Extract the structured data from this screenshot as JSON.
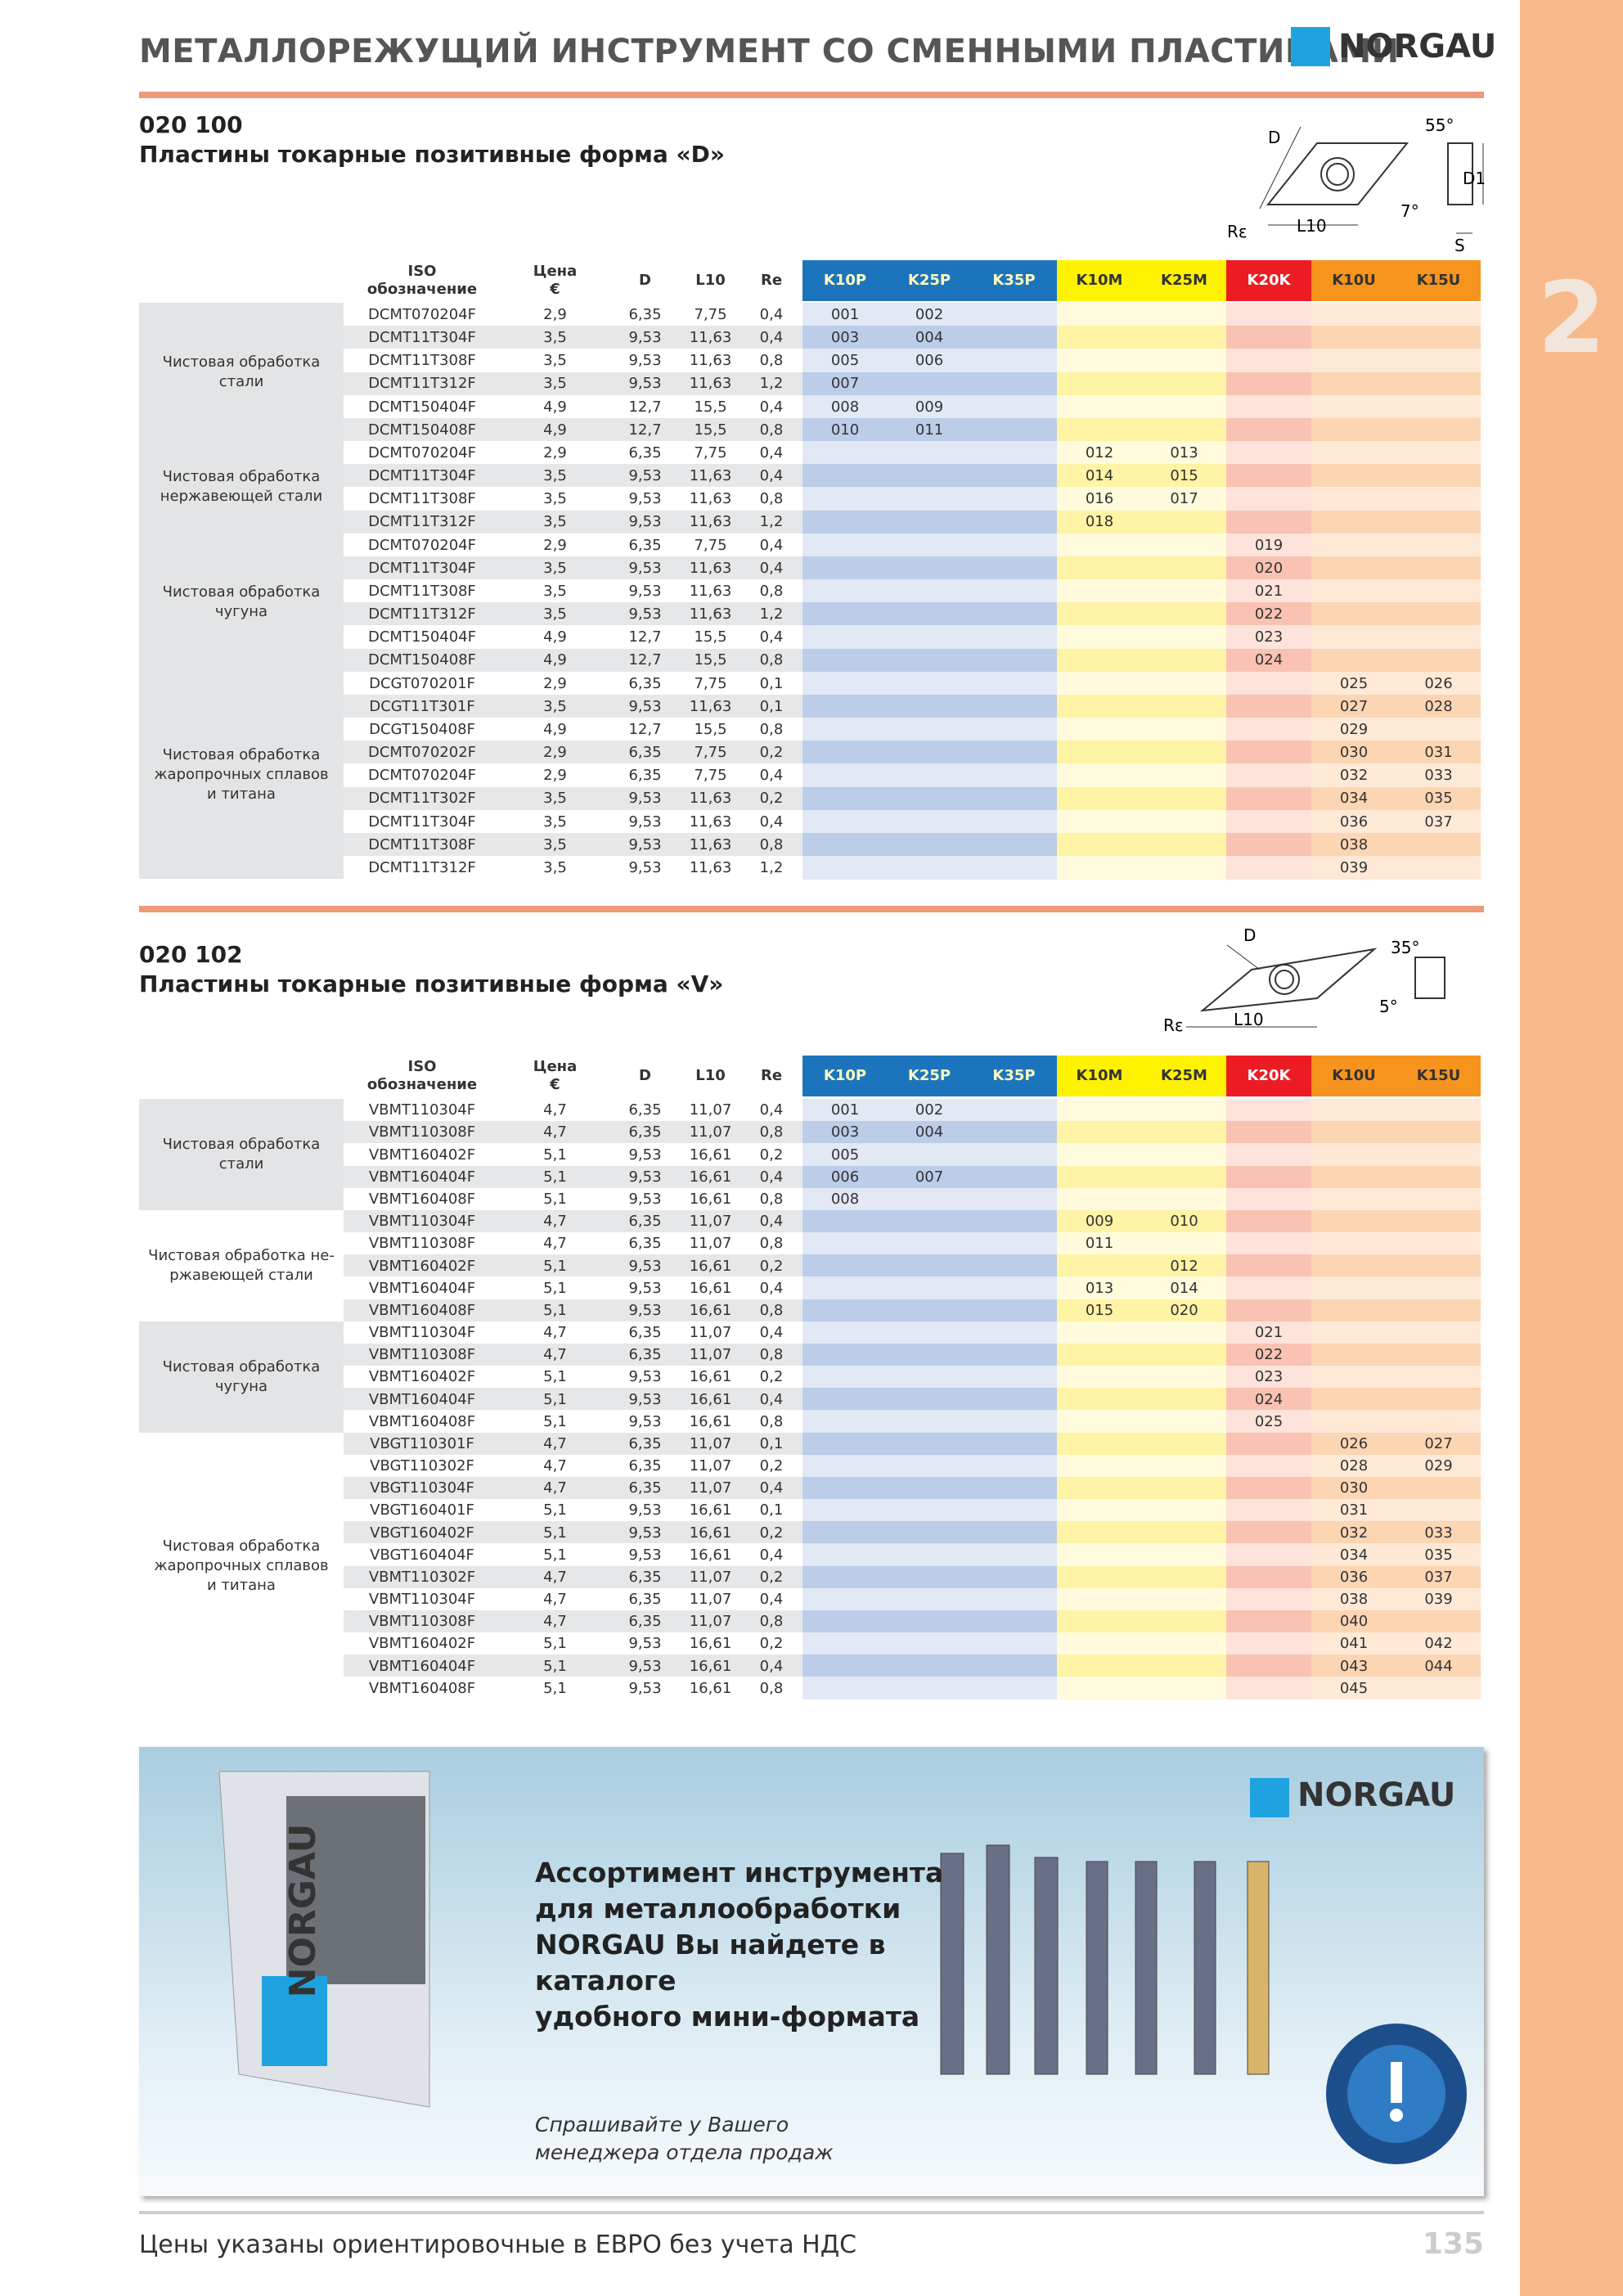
{
  "header": {
    "title": "МЕТАЛЛОРЕЖУЩИЙ ИНСТРУМЕНТ СО СМЕННЫМИ ПЛАСТИНАМИ",
    "logo": "NORGAU",
    "tab": "2"
  },
  "sections": [
    {
      "code": "020 100",
      "title": "Пластины токарные позитивные форма «D»",
      "diagram": [
        "D",
        "55°",
        "D1",
        "7°",
        "Rε",
        "L10",
        "S"
      ],
      "columns": [
        [
          "ISO",
          "обозначение"
        ],
        [
          "Цена",
          "€"
        ],
        [
          "D"
        ],
        [
          "L10"
        ],
        [
          "Re"
        ],
        [
          "K10P"
        ],
        [
          "K25P"
        ],
        [
          "K35P"
        ],
        [
          "K10M"
        ],
        [
          "K25M"
        ],
        [
          "K20K"
        ],
        [
          "K10U"
        ],
        [
          "K15U"
        ]
      ],
      "groups": [
        {
          "label": [
            "Чистовая обработка",
            "стали"
          ],
          "rows": [
            [
              "DCMT070204F",
              "2,9",
              "6,35",
              "7,75",
              "0,4",
              "001",
              "002",
              null,
              null,
              null,
              null,
              null,
              null
            ],
            [
              "DCMT11T304F",
              "3,5",
              "9,53",
              "11,63",
              "0,4",
              "003",
              "004",
              null,
              null,
              null,
              null,
              null,
              null
            ],
            [
              "DCMT11T308F",
              "3,5",
              "9,53",
              "11,63",
              "0,8",
              "005",
              "006",
              null,
              null,
              null,
              null,
              null,
              null
            ],
            [
              "DCMT11T312F",
              "3,5",
              "9,53",
              "11,63",
              "1,2",
              "007",
              null,
              null,
              null,
              null,
              null,
              null,
              null
            ],
            [
              "DCMT150404F",
              "4,9",
              "12,7",
              "15,5",
              "0,4",
              "008",
              "009",
              null,
              null,
              null,
              null,
              null,
              null
            ],
            [
              "DCMT150408F",
              "4,9",
              "12,7",
              "15,5",
              "0,8",
              "010",
              "011",
              null,
              null,
              null,
              null,
              null,
              null
            ]
          ]
        },
        {
          "label": [
            "Чистовая обработка",
            "нержавеющей стали"
          ],
          "rows": [
            [
              "DCMT070204F",
              "2,9",
              "6,35",
              "7,75",
              "0,4",
              null,
              null,
              null,
              "012",
              "013",
              null,
              null,
              null
            ],
            [
              "DCMT11T304F",
              "3,5",
              "9,53",
              "11,63",
              "0,4",
              null,
              null,
              null,
              "014",
              "015",
              null,
              null,
              null
            ],
            [
              "DCMT11T308F",
              "3,5",
              "9,53",
              "11,63",
              "0,8",
              null,
              null,
              null,
              "016",
              "017",
              null,
              null,
              null
            ],
            [
              "DCMT11T312F",
              "3,5",
              "9,53",
              "11,63",
              "1,2",
              null,
              null,
              null,
              "018",
              null,
              null,
              null,
              null
            ]
          ]
        },
        {
          "label": [
            "Чистовая обработка",
            "чугуна"
          ],
          "rows": [
            [
              "DCMT070204F",
              "2,9",
              "6,35",
              "7,75",
              "0,4",
              null,
              null,
              null,
              null,
              null,
              "019",
              null,
              null
            ],
            [
              "DCMT11T304F",
              "3,5",
              "9,53",
              "11,63",
              "0,4",
              null,
              null,
              null,
              null,
              null,
              "020",
              null,
              null
            ],
            [
              "DCMT11T308F",
              "3,5",
              "9,53",
              "11,63",
              "0,8",
              null,
              null,
              null,
              null,
              null,
              "021",
              null,
              null
            ],
            [
              "DCMT11T312F",
              "3,5",
              "9,53",
              "11,63",
              "1,2",
              null,
              null,
              null,
              null,
              null,
              "022",
              null,
              null
            ],
            [
              "DCMT150404F",
              "4,9",
              "12,7",
              "15,5",
              "0,4",
              null,
              null,
              null,
              null,
              null,
              "023",
              null,
              null
            ],
            [
              "DCMT150408F",
              "4,9",
              "12,7",
              "15,5",
              "0,8",
              null,
              null,
              null,
              null,
              null,
              "024",
              null,
              null
            ]
          ]
        },
        {
          "label": [
            "Чистовая обработка",
            "жаропрочных сплавов",
            "и титана"
          ],
          "rows": [
            [
              "DCGT070201F",
              "2,9",
              "6,35",
              "7,75",
              "0,1",
              null,
              null,
              null,
              null,
              null,
              null,
              "025",
              "026"
            ],
            [
              "DCGT11T301F",
              "3,5",
              "9,53",
              "11,63",
              "0,1",
              null,
              null,
              null,
              null,
              null,
              null,
              "027",
              "028"
            ],
            [
              "DCGT150408F",
              "4,9",
              "12,7",
              "15,5",
              "0,8",
              null,
              null,
              null,
              null,
              null,
              null,
              "029",
              null
            ],
            [
              "DCMT070202F",
              "2,9",
              "6,35",
              "7,75",
              "0,2",
              null,
              null,
              null,
              null,
              null,
              null,
              "030",
              "031"
            ],
            [
              "DCMT070204F",
              "2,9",
              "6,35",
              "7,75",
              "0,4",
              null,
              null,
              null,
              null,
              null,
              null,
              "032",
              "033"
            ],
            [
              "DCMT11T302F",
              "3,5",
              "9,53",
              "11,63",
              "0,2",
              null,
              null,
              null,
              null,
              null,
              null,
              "034",
              "035"
            ],
            [
              "DCMT11T304F",
              "3,5",
              "9,53",
              "11,63",
              "0,4",
              null,
              null,
              null,
              null,
              null,
              null,
              "036",
              "037"
            ],
            [
              "DCMT11T308F",
              "3,5",
              "9,53",
              "11,63",
              "0,8",
              null,
              null,
              null,
              null,
              null,
              null,
              "038",
              null
            ],
            [
              "DCMT11T312F",
              "3,5",
              "9,53",
              "11,63",
              "1,2",
              null,
              null,
              null,
              null,
              null,
              null,
              "039",
              null
            ]
          ]
        }
      ]
    },
    {
      "code": "020 102",
      "title": "Пластины токарные позитивные форма «V»",
      "diagram": [
        "D",
        "35°",
        "5°",
        "Rε",
        "L10"
      ],
      "columns": [
        [
          "ISO",
          "обозначение"
        ],
        [
          "Цена",
          "€"
        ],
        [
          "D"
        ],
        [
          "L10"
        ],
        [
          "Re"
        ],
        [
          "K10P"
        ],
        [
          "K25P"
        ],
        [
          "K35P"
        ],
        [
          "K10M"
        ],
        [
          "K25M"
        ],
        [
          "K20K"
        ],
        [
          "K10U"
        ],
        [
          "K15U"
        ]
      ],
      "groups": [
        {
          "label": [
            "Чистовая обработка",
            "стали"
          ],
          "rows": [
            [
              "VBMT110304F",
              "4,7",
              "6,35",
              "11,07",
              "0,4",
              "001",
              "002",
              null,
              null,
              null,
              null,
              null,
              null
            ],
            [
              "VBMT110308F",
              "4,7",
              "6,35",
              "11,07",
              "0,8",
              "003",
              "004",
              null,
              null,
              null,
              null,
              null,
              null
            ],
            [
              "VBMT160402F",
              "5,1",
              "9,53",
              "16,61",
              "0,2",
              "005",
              null,
              null,
              null,
              null,
              null,
              null,
              null
            ],
            [
              "VBMT160404F",
              "5,1",
              "9,53",
              "16,61",
              "0,4",
              "006",
              "007",
              null,
              null,
              null,
              null,
              null,
              null
            ],
            [
              "VBMT160408F",
              "5,1",
              "9,53",
              "16,61",
              "0,8",
              "008",
              null,
              null,
              null,
              null,
              null,
              null,
              null
            ]
          ]
        },
        {
          "label": [
            "Чистовая обработка не-",
            "ржавеющей стали"
          ],
          "rows": [
            [
              "VBMT110304F",
              "4,7",
              "6,35",
              "11,07",
              "0,4",
              null,
              null,
              null,
              "009",
              "010",
              null,
              null,
              null
            ],
            [
              "VBMT110308F",
              "4,7",
              "6,35",
              "11,07",
              "0,8",
              null,
              null,
              null,
              "011",
              null,
              null,
              null,
              null
            ],
            [
              "VBMT160402F",
              "5,1",
              "9,53",
              "16,61",
              "0,2",
              null,
              null,
              null,
              null,
              "012",
              null,
              null,
              null
            ],
            [
              "VBMT160404F",
              "5,1",
              "9,53",
              "16,61",
              "0,4",
              null,
              null,
              null,
              "013",
              "014",
              null,
              null,
              null
            ],
            [
              "VBMT160408F",
              "5,1",
              "9,53",
              "16,61",
              "0,8",
              null,
              null,
              null,
              "015",
              "020",
              null,
              null,
              null
            ]
          ]
        },
        {
          "label": [
            "Чистовая обработка",
            "чугуна"
          ],
          "rows": [
            [
              "VBMT110304F",
              "4,7",
              "6,35",
              "11,07",
              "0,4",
              null,
              null,
              null,
              null,
              null,
              "021",
              null,
              null
            ],
            [
              "VBMT110308F",
              "4,7",
              "6,35",
              "11,07",
              "0,8",
              null,
              null,
              null,
              null,
              null,
              "022",
              null,
              null
            ],
            [
              "VBMT160402F",
              "5,1",
              "9,53",
              "16,61",
              "0,2",
              null,
              null,
              null,
              null,
              null,
              "023",
              null,
              null
            ],
            [
              "VBMT160404F",
              "5,1",
              "9,53",
              "16,61",
              "0,4",
              null,
              null,
              null,
              null,
              null,
              "024",
              null,
              null
            ],
            [
              "VBMT160408F",
              "5,1",
              "9,53",
              "16,61",
              "0,8",
              null,
              null,
              null,
              null,
              null,
              "025",
              null,
              null
            ]
          ]
        },
        {
          "label": [
            "Чистовая обработка",
            "жаропрочных сплавов",
            "и титана"
          ],
          "rows": [
            [
              "VBGT110301F",
              "4,7",
              "6,35",
              "11,07",
              "0,1",
              null,
              null,
              null,
              null,
              null,
              null,
              "026",
              "027"
            ],
            [
              "VBGT110302F",
              "4,7",
              "6,35",
              "11,07",
              "0,2",
              null,
              null,
              null,
              null,
              null,
              null,
              "028",
              "029"
            ],
            [
              "VBGT110304F",
              "4,7",
              "6,35",
              "11,07",
              "0,4",
              null,
              null,
              null,
              null,
              null,
              null,
              "030",
              null
            ],
            [
              "VBGT160401F",
              "5,1",
              "9,53",
              "16,61",
              "0,1",
              null,
              null,
              null,
              null,
              null,
              null,
              "031",
              null
            ],
            [
              "VBGT160402F",
              "5,1",
              "9,53",
              "16,61",
              "0,2",
              null,
              null,
              null,
              null,
              null,
              null,
              "032",
              "033"
            ],
            [
              "VBGT160404F",
              "5,1",
              "9,53",
              "16,61",
              "0,4",
              null,
              null,
              null,
              null,
              null,
              null,
              "034",
              "035"
            ],
            [
              "VBMT110302F",
              "4,7",
              "6,35",
              "11,07",
              "0,2",
              null,
              null,
              null,
              null,
              null,
              null,
              "036",
              "037"
            ],
            [
              "VBMT110304F",
              "4,7",
              "6,35",
              "11,07",
              "0,4",
              null,
              null,
              null,
              null,
              null,
              null,
              "038",
              "039"
            ],
            [
              "VBMT110308F",
              "4,7",
              "6,35",
              "11,07",
              "0,8",
              null,
              null,
              null,
              null,
              null,
              null,
              "040",
              null
            ],
            [
              "VBMT160402F",
              "5,1",
              "9,53",
              "16,61",
              "0,2",
              null,
              null,
              null,
              null,
              null,
              null,
              "041",
              "042"
            ],
            [
              "VBMT160404F",
              "5,1",
              "9,53",
              "16,61",
              "0,4",
              null,
              null,
              null,
              null,
              null,
              null,
              "043",
              "044"
            ],
            [
              "VBMT160408F",
              "5,1",
              "9,53",
              "16,61",
              "0,8",
              null,
              null,
              null,
              null,
              null,
              null,
              "045",
              null
            ]
          ]
        }
      ]
    }
  ],
  "banner": {
    "logo": "NORGAU",
    "catalog": "NORGAU",
    "heading": [
      "Ассортимент инструмента",
      "для металлообработки",
      "NORGAU Вы найдете в",
      "каталоге",
      "удобного мини-формата"
    ],
    "note": [
      "Спрашивайте у Вашего",
      "менеджера отдела продаж"
    ]
  },
  "footer": {
    "text": "Цены указаны ориентировочные в ЕВРО без учета НДС",
    "page": "135"
  }
}
